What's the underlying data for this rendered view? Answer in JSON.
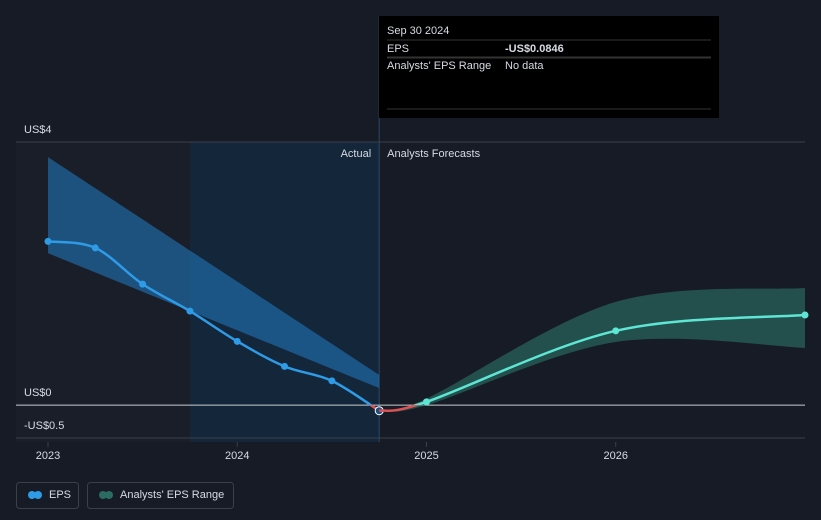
{
  "chart_data": {
    "type": "line",
    "ylim": [
      -0.56,
      4
    ],
    "yticks": [
      {
        "value": 4,
        "label": "US$4"
      },
      {
        "value": 0,
        "label": "US$0"
      },
      {
        "value": -0.5,
        "label": "-US$0.5"
      }
    ],
    "xlim": [
      2022.831,
      2027
    ],
    "xticks": [
      2023,
      2024,
      2025,
      2026
    ],
    "negative_color": "#e05252",
    "actual_label": "Actual",
    "forecast_label": "Analysts Forecasts",
    "highlight_start": 2023.75,
    "divider": 2024.75,
    "series": [
      {
        "name": "EPS",
        "color": "#2e9be6",
        "x": [
          2023,
          2023.25,
          2023.5,
          2023.75,
          2024,
          2024.25,
          2024.5,
          2024.75
        ],
        "values": [
          2.49,
          2.39,
          1.84,
          1.43,
          0.97,
          0.59,
          0.37,
          -0.0846
        ]
      },
      {
        "color": "#5ee6d4",
        "x": [
          2024.75,
          2025,
          2026,
          2027
        ],
        "values": [
          -0.0846,
          0.05,
          1.13,
          1.37
        ]
      }
    ],
    "ranges": [
      {
        "color": "#1f6fae",
        "x": [
          2023,
          2024.75
        ],
        "low": [
          2.31,
          0.26
        ],
        "high": [
          3.77,
          0.46
        ]
      },
      {
        "name": "Analysts' EPS Range",
        "color": "#2b6b63",
        "x": [
          2024.75,
          2025,
          2026,
          2027
        ],
        "low": [
          -0.0846,
          0.0,
          0.96,
          0.87
        ],
        "high": [
          -0.0846,
          0.1,
          1.57,
          1.78
        ]
      }
    ],
    "tooltip": {
      "date": "Sep 30 2024",
      "rows": [
        [
          "EPS",
          "-US$0.0846"
        ],
        [
          "Analysts' EPS Range",
          "No data"
        ]
      ]
    }
  }
}
